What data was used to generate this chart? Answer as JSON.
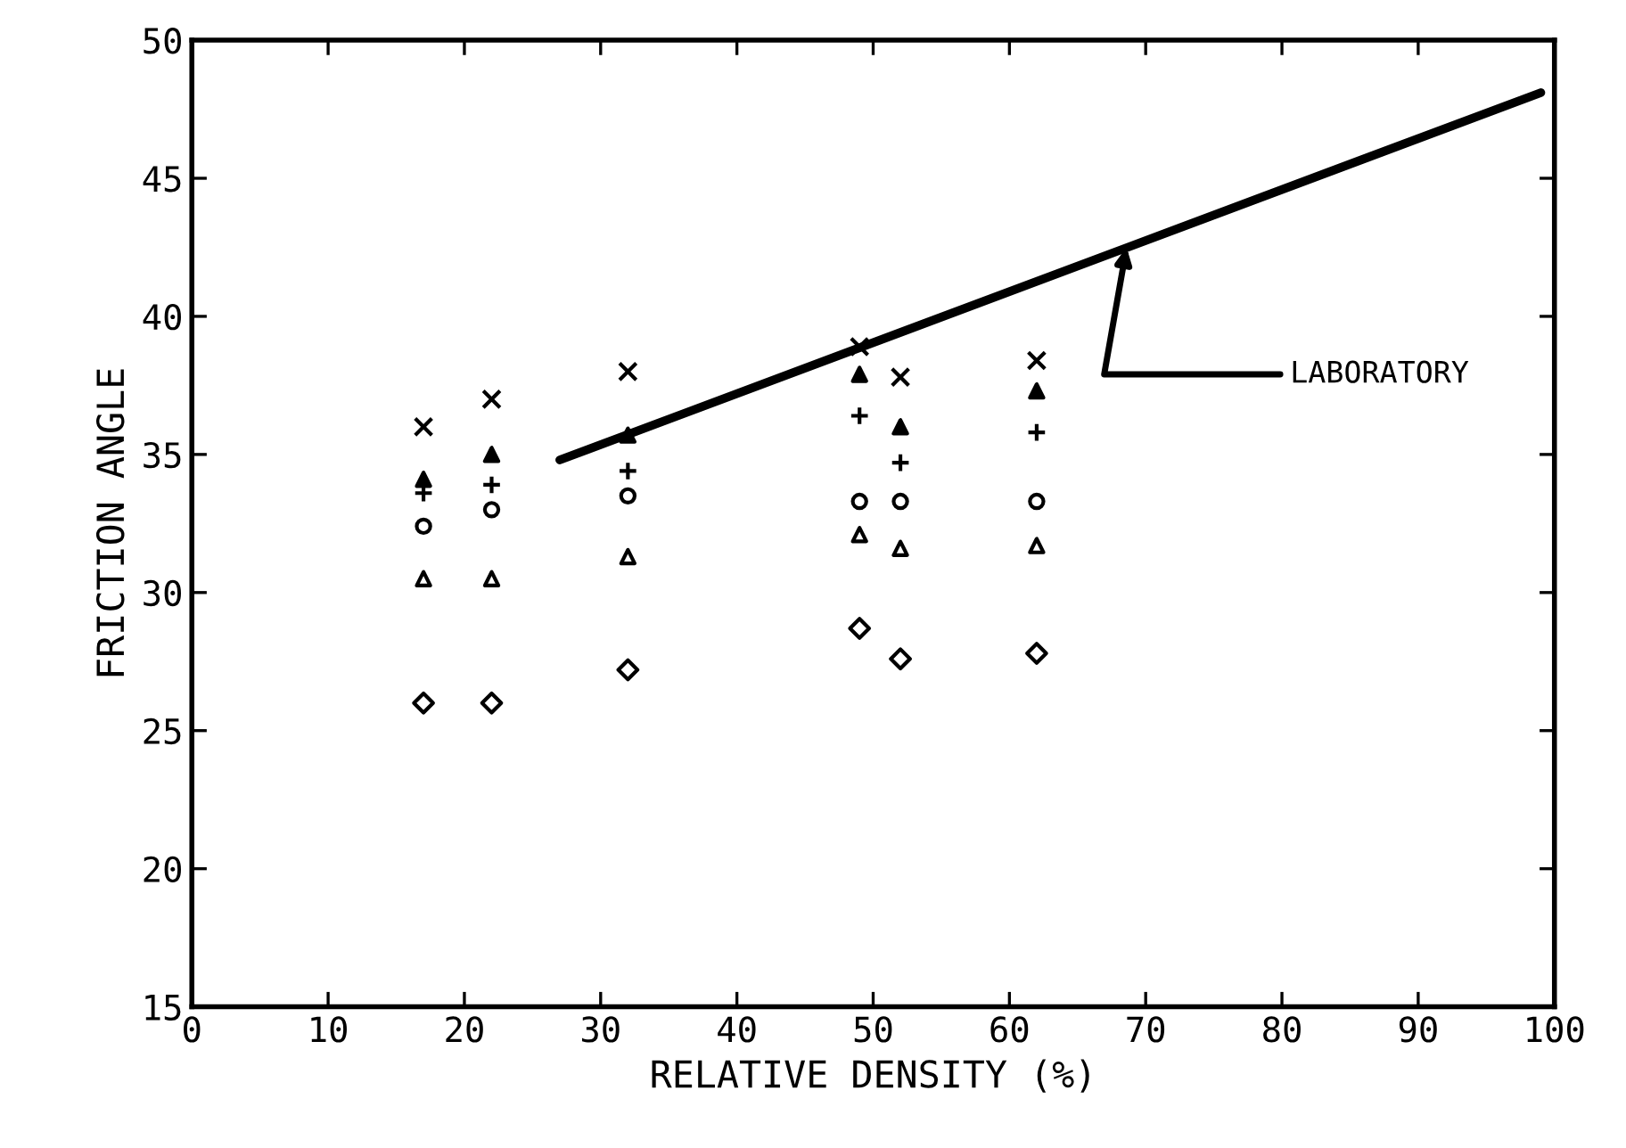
{
  "chart_data": {
    "type": "scatter",
    "xlabel": "RELATIVE DENSITY (%)",
    "ylabel": "FRICTION ANGLE",
    "xlim": [
      0,
      100
    ],
    "ylim": [
      15,
      50
    ],
    "xticks": [
      0,
      10,
      20,
      30,
      40,
      50,
      60,
      70,
      80,
      90,
      100
    ],
    "yticks": [
      15,
      20,
      25,
      30,
      35,
      40,
      45,
      50
    ],
    "grid": false,
    "legend": false,
    "x": [
      17,
      22,
      32,
      49,
      52,
      62
    ],
    "series": [
      {
        "color": "#000000",
        "marker": "cross",
        "values": [
          36,
          37,
          38,
          38.9,
          37.8,
          38.4
        ]
      },
      {
        "color": "#000000",
        "marker": "triangle",
        "values": [
          34.1,
          35,
          35.7,
          37.9,
          36,
          37.3
        ]
      },
      {
        "color": "#000000",
        "marker": "plus",
        "values": [
          33.6,
          33.9,
          34.4,
          36.4,
          34.7,
          35.8
        ]
      },
      {
        "color": "#000000",
        "marker": "circle",
        "values": [
          32.4,
          33,
          33.5,
          33.3,
          33.3,
          33.3
        ]
      },
      {
        "color": "#000000",
        "marker": "triangle_open",
        "values": [
          30.5,
          30.5,
          31.3,
          32.1,
          31.6,
          31.7
        ]
      },
      {
        "color": "#000000",
        "marker": "diamond",
        "values": [
          26,
          26,
          27.2,
          28.7,
          27.6,
          27.8
        ]
      },
      {
        "type": "line",
        "color": "#000000",
        "x": [
          27,
          99
        ],
        "values": [
          34.8,
          48.1
        ],
        "marker": "none",
        "line_style": "solid"
      }
    ],
    "annotations": [
      {
        "text": "LABORATORY",
        "x": 68.6,
        "y": 42.5
      }
    ]
  }
}
